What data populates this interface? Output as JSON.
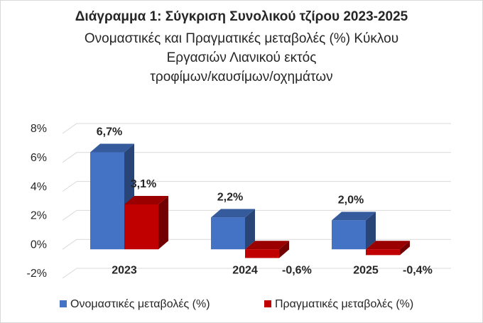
{
  "chart_data": {
    "type": "bar3d",
    "title": "Διάγραμμα 1: Σύγκριση Συνολικού τζίρου 2023-2025",
    "subtitle": [
      "Ονομαστικές και Πραγματικές μεταβολές (%) Κύκλου",
      "Εργασιών Λιανικού εκτός",
      "τροφίμων/καυσίμων/οχημάτων"
    ],
    "categories": [
      "2023",
      "2024",
      "2025"
    ],
    "series": [
      {
        "name": "Ονομαστικές μεταβολές (%)",
        "color": "#4472c4",
        "values": [
          6.7,
          2.2,
          2.0
        ],
        "value_labels": [
          "6,7%",
          "2,2%",
          "2,0%"
        ]
      },
      {
        "name": "Πραγματικές μεταβολές (%)",
        "color": "#c00000",
        "values": [
          3.1,
          -0.6,
          -0.4
        ],
        "value_labels": [
          "3,1%",
          "-0,6%",
          "-0,4%"
        ]
      }
    ],
    "ylim": [
      -2,
      8
    ],
    "yticks": [
      {
        "value": -2,
        "label": "-2%"
      },
      {
        "value": 0,
        "label": "0%"
      },
      {
        "value": 2,
        "label": "2%"
      },
      {
        "value": 4,
        "label": "4%"
      },
      {
        "value": 6,
        "label": "6%"
      },
      {
        "value": 8,
        "label": "8%"
      }
    ],
    "grid": true,
    "legend": "bottom"
  }
}
